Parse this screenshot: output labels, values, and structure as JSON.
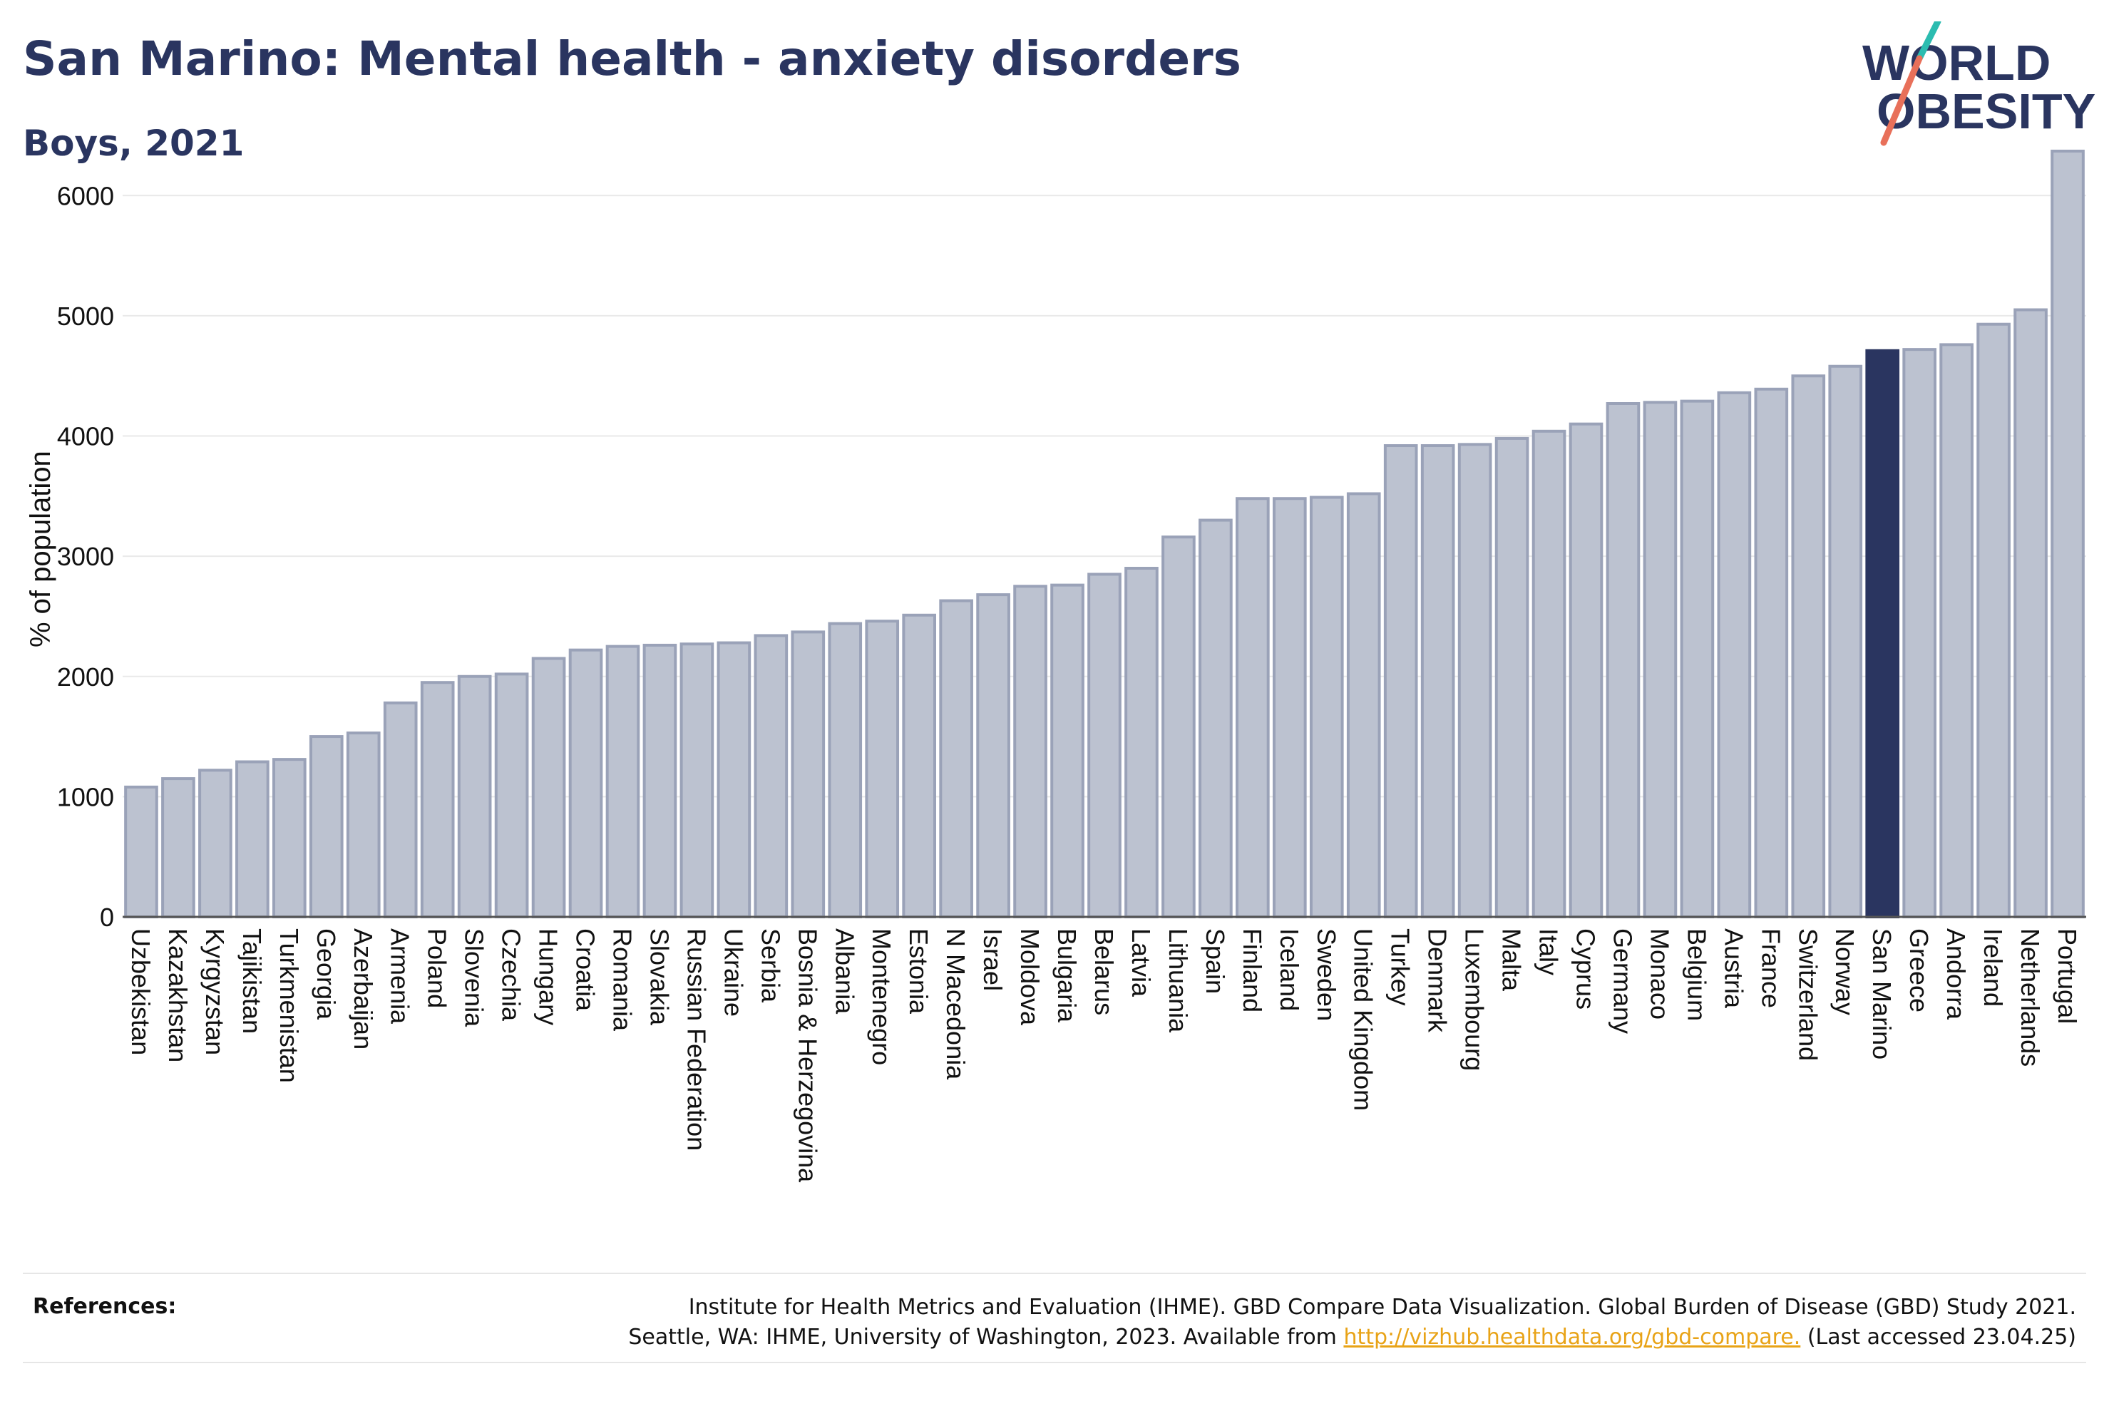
{
  "header": {
    "title": "San Marino: Mental health - anxiety disorders",
    "subtitle": "Boys, 2021"
  },
  "logo": {
    "line1": "WORLD",
    "line2": "OBESITY",
    "accent_color": "#e8705a",
    "accent_color_2": "#2bbcb0"
  },
  "colors": {
    "bar": "#bcc2d0",
    "bar_edge": "#9aa2b8",
    "highlight": "#2a3560",
    "grid": "#e9e9e9",
    "axis": "#555555"
  },
  "chart_data": {
    "type": "bar",
    "title": "San Marino: Mental health - anxiety disorders",
    "subtitle": "Boys, 2021",
    "xlabel": "",
    "ylabel": "% of population",
    "ylim": [
      0,
      6500
    ],
    "yticks": [
      0,
      1000,
      2000,
      3000,
      4000,
      5000,
      6000
    ],
    "grid": true,
    "highlight": "San Marino",
    "categories": [
      "Uzbekistan",
      "Kazakhstan",
      "Kyrgyzstan",
      "Tajikistan",
      "Turkmenistan",
      "Georgia",
      "Azerbaijan",
      "Armenia",
      "Poland",
      "Slovenia",
      "Czechia",
      "Hungary",
      "Croatia",
      "Romania",
      "Slovakia",
      "Russian Federation",
      "Ukraine",
      "Serbia",
      "Bosnia & Herzegovina",
      "Albania",
      "Montenegro",
      "Estonia",
      "N Macedonia",
      "Israel",
      "Moldova",
      "Bulgaria",
      "Belarus",
      "Latvia",
      "Lithuania",
      "Spain",
      "Finland",
      "Iceland",
      "Sweden",
      "United Kingdom",
      "Turkey",
      "Denmark",
      "Luxembourg",
      "Malta",
      "Italy",
      "Cyprus",
      "Germany",
      "Monaco",
      "Belgium",
      "Austria",
      "France",
      "Switzerland",
      "Norway",
      "San Marino",
      "Greece",
      "Andorra",
      "Ireland",
      "Netherlands",
      "Portugal"
    ],
    "values": [
      1080,
      1150,
      1220,
      1290,
      1310,
      1500,
      1530,
      1780,
      1950,
      2000,
      2020,
      2150,
      2220,
      2250,
      2260,
      2270,
      2280,
      2340,
      2370,
      2440,
      2460,
      2510,
      2630,
      2680,
      2750,
      2760,
      2850,
      2900,
      3160,
      3300,
      3480,
      3480,
      3490,
      3520,
      3920,
      3920,
      3930,
      3980,
      4040,
      4100,
      4270,
      4280,
      4290,
      4360,
      4390,
      4500,
      4580,
      4710,
      4720,
      4760,
      4930,
      5050,
      6370
    ]
  },
  "references": {
    "label": "References:",
    "line1": "Institute for Health Metrics and Evaluation (IHME). GBD Compare Data Visualization. Global Burden of Disease (GBD) Study 2021.",
    "line2_pre": "Seattle, WA: IHME, University of Washington, 2023. Available from ",
    "link": "http://vizhub.healthdata.org/gbd-compare.",
    "line2_post": " (Last accessed 23.04.25)"
  }
}
